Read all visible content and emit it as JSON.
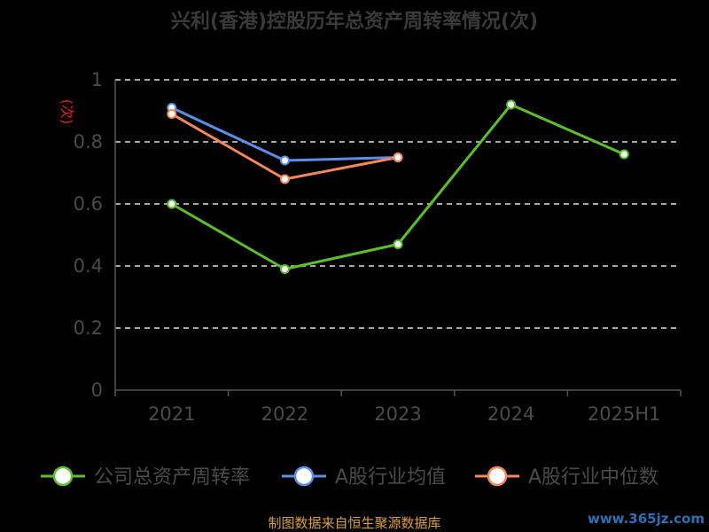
{
  "chart_data": {
    "type": "line",
    "title": "兴利(香港)控股历年总资产周转率情况(次)",
    "ylabel": "(次)",
    "categories": [
      "2021",
      "2022",
      "2023",
      "2024",
      "2025H1"
    ],
    "ylim": [
      0,
      1
    ],
    "yticks": [
      "0",
      "0.2",
      "0.4",
      "0.6",
      "0.8",
      "1"
    ],
    "grid": true,
    "legend_position": "bottom",
    "series": [
      {
        "name": "公司总资产周转率",
        "color": "#5cbf2a",
        "values": [
          0.6,
          0.39,
          0.47,
          0.92,
          0.76
        ]
      },
      {
        "name": "A股行业均值",
        "color": "#5b8ee6",
        "values": [
          0.91,
          0.74,
          0.75,
          null,
          null
        ]
      },
      {
        "name": "A股行业中位数",
        "color": "#f5875a",
        "values": [
          0.89,
          0.68,
          0.75,
          null,
          null
        ]
      }
    ]
  },
  "footer": {
    "source": "制图数据来自恒生聚源数据库",
    "watermark": "www.365jz.com"
  }
}
